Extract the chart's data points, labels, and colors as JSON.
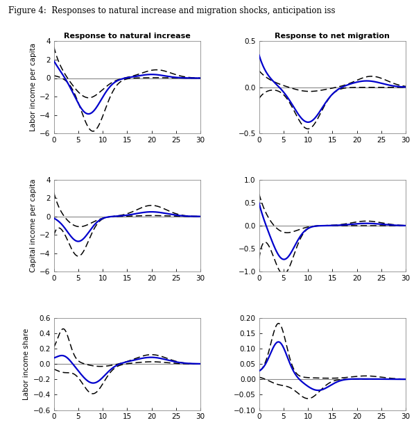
{
  "title": "Figure 4:  Responses to natural increase and migration shocks, anticipation iss",
  "col_titles": [
    "Response to natural increase",
    "Response to net migration"
  ],
  "row_labels": [
    "Labor income per capita",
    "Capital income per capita",
    "Labor income share"
  ],
  "ylims": [
    [
      [
        -6,
        4
      ],
      [
        -0.5,
        0.5
      ]
    ],
    [
      [
        -6,
        4
      ],
      [
        -1,
        1
      ]
    ],
    [
      [
        -0.6,
        0.6
      ],
      [
        -0.1,
        0.2
      ]
    ]
  ],
  "blue_color": "#0000cc",
  "dashed_color": "#000000",
  "zero_line_color": "#888888"
}
